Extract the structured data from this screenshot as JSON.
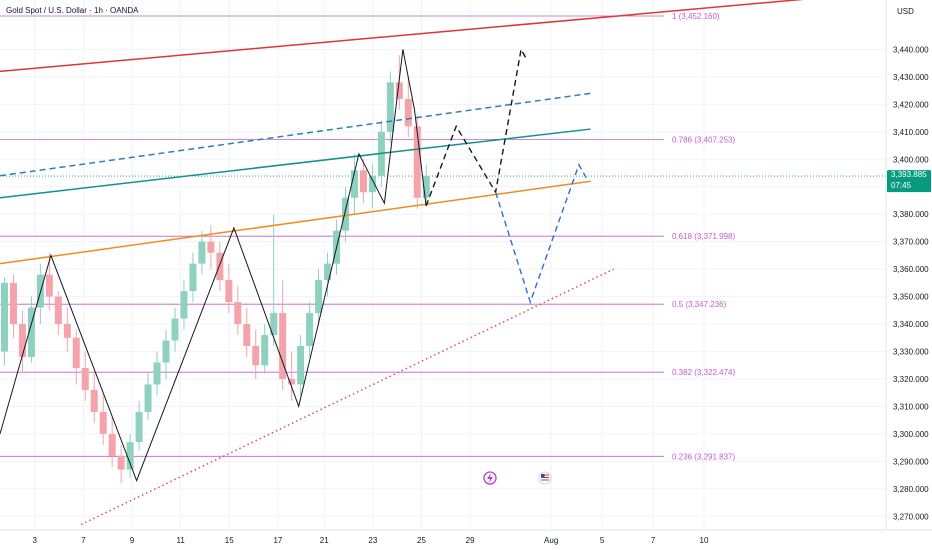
{
  "chart_data": {
    "type": "candlestick",
    "title": "Gold Spot / U.S. Dollar · 1h · OANDA",
    "currency": "USD",
    "ylim": [
      3265,
      3458
    ],
    "xlim": [
      0,
      38
    ],
    "y_ticks": [
      3270,
      3280,
      3290,
      3300,
      3310,
      3320,
      3330,
      3340,
      3350,
      3360,
      3370,
      3380,
      3390,
      3400,
      3410,
      3420,
      3430,
      3440
    ],
    "y_tick_labels": [
      "3,270.000",
      "3,280.000",
      "3,290.000",
      "3,300.000",
      "3,310.000",
      "3,320.000",
      "3,330.000",
      "3,340.000",
      "3,350.000",
      "3,360.000",
      "3,370.000",
      "3,380.000",
      "3,390.000",
      "3,400.000",
      "3,410.000",
      "3,420.000",
      "3,430.000",
      "3,440.000"
    ],
    "x_ticks": [
      {
        "x": 1.5,
        "label": "3"
      },
      {
        "x": 3.6,
        "label": "7"
      },
      {
        "x": 5.7,
        "label": "9"
      },
      {
        "x": 7.8,
        "label": "11"
      },
      {
        "x": 9.9,
        "label": "15"
      },
      {
        "x": 12.0,
        "label": "17"
      },
      {
        "x": 14.0,
        "label": "21"
      },
      {
        "x": 16.1,
        "label": "23"
      },
      {
        "x": 18.2,
        "label": "25"
      },
      {
        "x": 20.3,
        "label": "29"
      },
      {
        "x": 23.8,
        "label": "Aug"
      },
      {
        "x": 26.0,
        "label": "5"
      },
      {
        "x": 28.2,
        "label": "7"
      },
      {
        "x": 30.4,
        "label": "10"
      }
    ],
    "current_price": {
      "value": 3393.885,
      "label": "3,393.885",
      "countdown": "07:45"
    },
    "fib_levels": [
      {
        "ratio": "1",
        "value": 3452.16,
        "label": "1 (3,452.160)"
      },
      {
        "ratio": "0.786",
        "value": 3407.253,
        "label": "0.786 (3,407.253)"
      },
      {
        "ratio": "0.618",
        "value": 3371.998,
        "label": "0.618 (3,371.998)"
      },
      {
        "ratio": "0.5",
        "value": 3347.236,
        "label": "0.5 (3,347.236)"
      },
      {
        "ratio": "0.382",
        "value": 3322.474,
        "label": "0.382 (3,322.474)"
      },
      {
        "ratio": "0.236",
        "value": 3291.837,
        "label": "0.236 (3,291.837)"
      }
    ],
    "candles": [
      [
        3330,
        3357,
        3325,
        3355
      ],
      [
        3355,
        3358,
        3335,
        3340
      ],
      [
        3340,
        3345,
        3322,
        3328
      ],
      [
        3328,
        3350,
        3326,
        3346
      ],
      [
        3346,
        3362,
        3340,
        3358
      ],
      [
        3358,
        3366,
        3345,
        3350
      ],
      [
        3350,
        3352,
        3336,
        3340
      ],
      [
        3340,
        3346,
        3330,
        3335
      ],
      [
        3335,
        3338,
        3318,
        3324
      ],
      [
        3324,
        3330,
        3312,
        3316
      ],
      [
        3316,
        3322,
        3304,
        3308
      ],
      [
        3308,
        3314,
        3296,
        3300
      ],
      [
        3300,
        3306,
        3288,
        3292
      ],
      [
        3292,
        3296,
        3282,
        3287
      ],
      [
        3287,
        3300,
        3284,
        3297
      ],
      [
        3297,
        3312,
        3294,
        3308
      ],
      [
        3308,
        3322,
        3305,
        3318
      ],
      [
        3318,
        3330,
        3314,
        3326
      ],
      [
        3326,
        3338,
        3320,
        3334
      ],
      [
        3334,
        3346,
        3330,
        3342
      ],
      [
        3342,
        3356,
        3338,
        3352
      ],
      [
        3352,
        3366,
        3348,
        3362
      ],
      [
        3362,
        3374,
        3358,
        3370
      ],
      [
        3370,
        3376,
        3360,
        3366
      ],
      [
        3366,
        3370,
        3352,
        3356
      ],
      [
        3356,
        3362,
        3344,
        3348
      ],
      [
        3348,
        3354,
        3336,
        3340
      ],
      [
        3340,
        3346,
        3328,
        3332
      ],
      [
        3332,
        3338,
        3320,
        3325
      ],
      [
        3325,
        3340,
        3322,
        3336
      ],
      [
        3336,
        3380,
        3332,
        3344
      ],
      [
        3344,
        3356,
        3316,
        3320
      ],
      [
        3320,
        3330,
        3312,
        3318
      ],
      [
        3318,
        3336,
        3314,
        3332
      ],
      [
        3332,
        3348,
        3328,
        3344
      ],
      [
        3344,
        3360,
        3340,
        3356
      ],
      [
        3356,
        3366,
        3350,
        3362
      ],
      [
        3362,
        3378,
        3358,
        3374
      ],
      [
        3374,
        3390,
        3370,
        3386
      ],
      [
        3386,
        3402,
        3380,
        3396
      ],
      [
        3396,
        3400,
        3384,
        3388
      ],
      [
        3388,
        3398,
        3382,
        3394
      ],
      [
        3394,
        3414,
        3390,
        3410
      ],
      [
        3410,
        3432,
        3406,
        3428
      ],
      [
        3428,
        3438,
        3418,
        3422
      ],
      [
        3422,
        3430,
        3408,
        3412
      ],
      [
        3412,
        3416,
        3382,
        3386
      ],
      [
        3386,
        3398,
        3384,
        3394
      ]
    ],
    "lines": [
      {
        "name": "red-channel",
        "color": "#e0343a",
        "style": "solid",
        "points": [
          [
            0,
            3432
          ],
          [
            37,
            3460
          ]
        ]
      },
      {
        "name": "teal-channel",
        "color": "#13918f",
        "style": "solid",
        "points": [
          [
            0,
            3386
          ],
          [
            25.5,
            3411
          ]
        ]
      },
      {
        "name": "teal-dashed",
        "color": "#2e7fb3",
        "style": "dashed",
        "points": [
          [
            0,
            3394
          ],
          [
            25.5,
            3424
          ]
        ]
      },
      {
        "name": "orange-channel",
        "color": "#f08c1e",
        "style": "solid",
        "points": [
          [
            0,
            3362
          ],
          [
            25.5,
            3392
          ]
        ]
      },
      {
        "name": "support-dotted",
        "color": "#e04a5c",
        "style": "dotted",
        "points": [
          [
            3.5,
            3267
          ],
          [
            26.5,
            3360
          ]
        ]
      }
    ],
    "zigzag": [
      [
        0,
        3300
      ],
      [
        2.2,
        3365
      ],
      [
        5.9,
        3283
      ],
      [
        10.1,
        3375
      ],
      [
        12.9,
        3310
      ],
      [
        15.5,
        3402
      ],
      [
        16.6,
        3384
      ],
      [
        17.4,
        3440
      ],
      [
        17.9,
        3418
      ],
      [
        18.4,
        3383
      ]
    ],
    "projection_black": [
      [
        18.4,
        3383
      ],
      [
        19.7,
        3412
      ],
      [
        21.4,
        3388
      ],
      [
        22.5,
        3440
      ],
      [
        22.7,
        3437
      ]
    ],
    "projection_blue": [
      [
        21.4,
        3388
      ],
      [
        22.9,
        3348
      ],
      [
        25.0,
        3398
      ],
      [
        25.4,
        3392
      ]
    ]
  }
}
